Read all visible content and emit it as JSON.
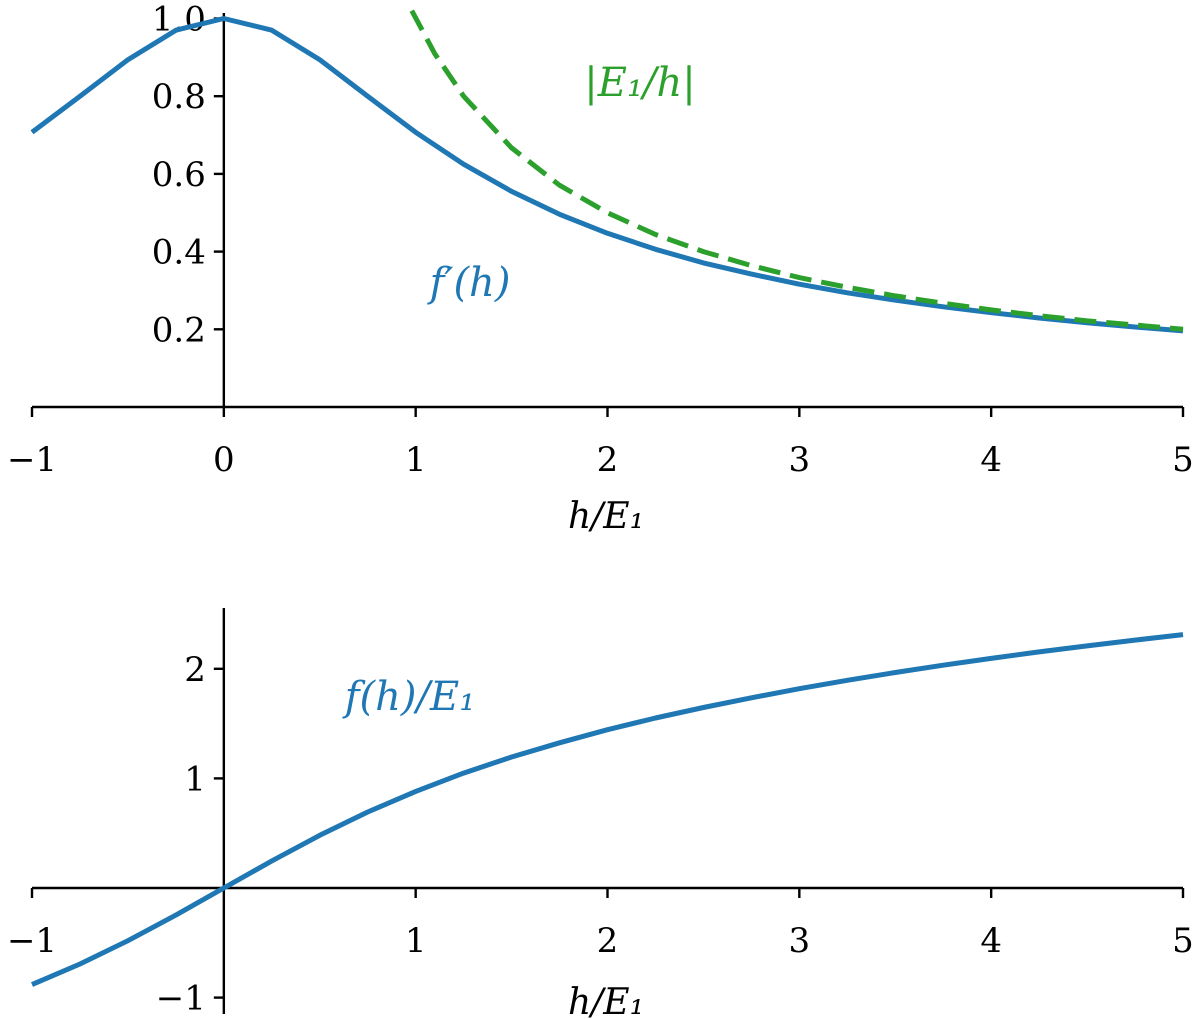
{
  "chart_data": [
    {
      "type": "line",
      "xlabel": "h/E₁",
      "ylabel": "",
      "xlim": [
        -1,
        5
      ],
      "ylim": [
        0,
        1.0
      ],
      "xticks": [
        -1,
        0,
        1,
        2,
        3,
        4,
        5
      ],
      "xtick_labels": [
        "−1",
        "0",
        "1",
        "2",
        "3",
        "4",
        "5"
      ],
      "yticks": [
        0.2,
        0.4,
        0.6,
        0.8,
        1.0
      ],
      "ytick_labels": [
        "0.2",
        "0.4",
        "0.6",
        "0.8",
        "1.0"
      ],
      "grid": false,
      "series": [
        {
          "name": "f′(h)",
          "color": "#1f77b4",
          "style": "solid",
          "x": [
            -1.0,
            -0.75,
            -0.5,
            -0.25,
            0.0,
            0.25,
            0.5,
            0.75,
            1.0,
            1.25,
            1.5,
            1.75,
            2.0,
            2.25,
            2.5,
            2.75,
            3.0,
            3.25,
            3.5,
            3.75,
            4.0,
            4.25,
            4.5,
            4.75,
            5.0
          ],
          "y": [
            0.707,
            0.8,
            0.894,
            0.97,
            1.0,
            0.97,
            0.894,
            0.8,
            0.707,
            0.625,
            0.555,
            0.496,
            0.447,
            0.406,
            0.371,
            0.342,
            0.316,
            0.294,
            0.275,
            0.258,
            0.243,
            0.229,
            0.217,
            0.206,
            0.196
          ]
        },
        {
          "name": "|E₁/h|",
          "color": "#2ca02c",
          "style": "dashed",
          "x": [
            0.98,
            1.1,
            1.25,
            1.5,
            1.75,
            2.0,
            2.25,
            2.5,
            2.75,
            3.0,
            3.25,
            3.5,
            3.75,
            4.0,
            4.25,
            4.5,
            4.75,
            5.0
          ],
          "y": [
            1.02,
            0.909,
            0.8,
            0.667,
            0.571,
            0.5,
            0.444,
            0.4,
            0.364,
            0.333,
            0.308,
            0.286,
            0.267,
            0.25,
            0.235,
            0.222,
            0.211,
            0.2
          ]
        }
      ]
    },
    {
      "type": "line",
      "xlabel": "h/E₁",
      "ylabel": "",
      "xlim": [
        -1,
        5
      ],
      "ylim": [
        -1.15,
        2.6
      ],
      "xticks": [
        -1,
        1,
        2,
        3,
        4,
        5
      ],
      "xtick_labels": [
        "−1",
        "1",
        "2",
        "3",
        "4",
        "5"
      ],
      "yticks": [
        -1,
        1,
        2
      ],
      "ytick_labels": [
        "−1",
        "1",
        "2"
      ],
      "grid": false,
      "series": [
        {
          "name": "f(h)/E₁",
          "color": "#1f77b4",
          "style": "solid",
          "x": [
            -1.0,
            -0.75,
            -0.5,
            -0.25,
            0.0,
            0.25,
            0.5,
            0.75,
            1.0,
            1.25,
            1.5,
            1.75,
            2.0,
            2.25,
            2.5,
            2.75,
            3.0,
            3.25,
            3.5,
            3.75,
            4.0,
            4.25,
            4.5,
            4.75,
            5.0
          ],
          "y": [
            -0.881,
            -0.693,
            -0.481,
            -0.247,
            0.0,
            0.247,
            0.481,
            0.693,
            0.881,
            1.048,
            1.195,
            1.325,
            1.444,
            1.551,
            1.647,
            1.735,
            1.818,
            1.895,
            1.966,
            2.033,
            2.095,
            2.154,
            2.209,
            2.262,
            2.312
          ]
        }
      ]
    }
  ]
}
